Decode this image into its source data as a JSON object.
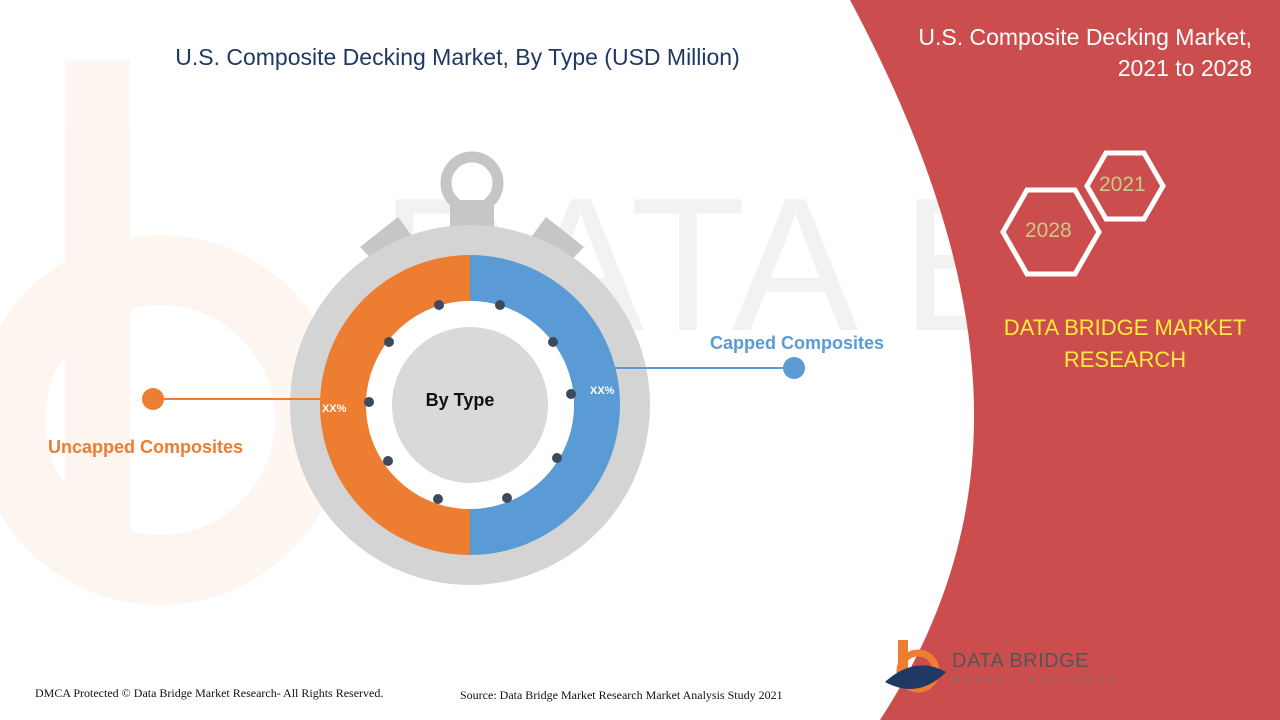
{
  "chart_data": {
    "type": "pie",
    "title": "U.S. Composite Decking Market, By Type (USD Million)",
    "center_label": "By Type",
    "slices": [
      {
        "name": "Uncapped Composites",
        "value": 50,
        "label": "XX%",
        "color": "#ed7d31"
      },
      {
        "name": "Capped Composites",
        "value": 50,
        "label": "XX%",
        "color": "#5b9bd5"
      }
    ]
  },
  "panel": {
    "title_line1": "U.S. Composite Decking Market,",
    "title_line2": "2021 to 2028",
    "year_start": "2021",
    "year_end": "2028",
    "brand_line1": "DATA BRIDGE MARKET",
    "brand_line2": "RESEARCH",
    "background_color": "#cc4d4d"
  },
  "footer": {
    "dmca": "DMCA Protected © Data Bridge Market Research- All Rights Reserved.",
    "source": "Source: Data Bridge Market Research Market Analysis Study 2021",
    "logo_name": "DATA BRIDGE",
    "logo_tagline": "MARKET RESEARCH"
  }
}
